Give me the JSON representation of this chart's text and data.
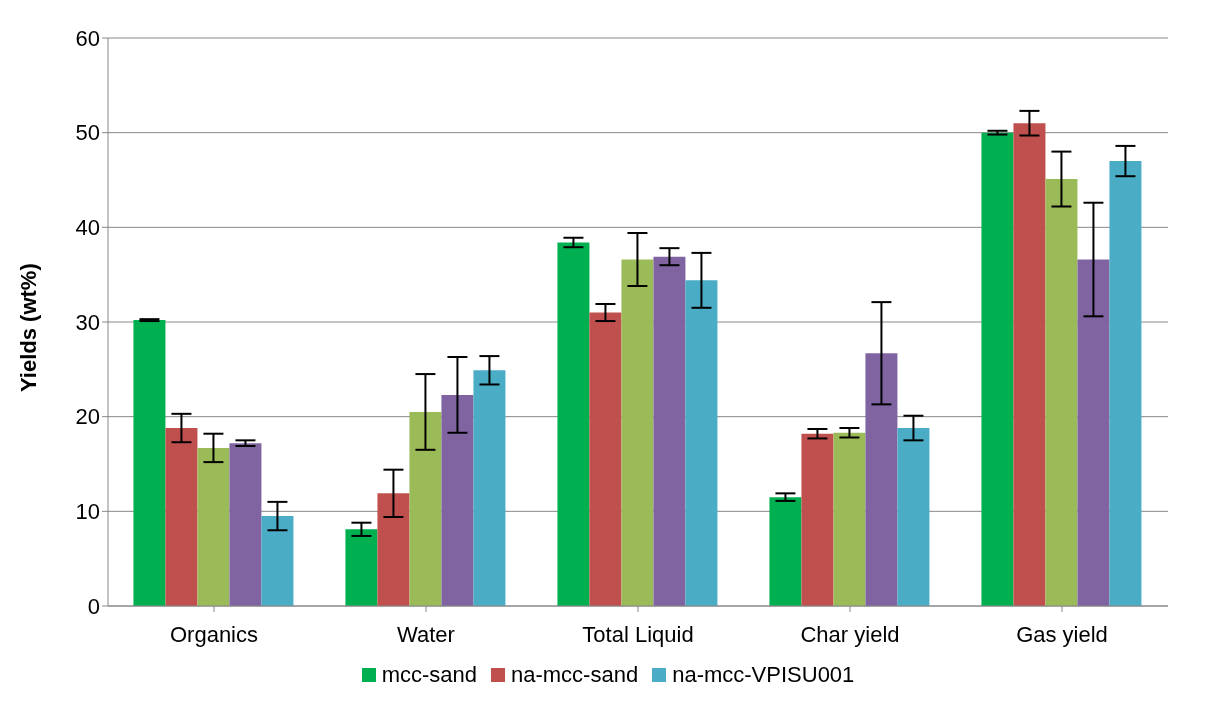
{
  "chart_data": {
    "type": "bar",
    "ylabel": "Yields (wt%)",
    "categories": [
      "Organics",
      "Water",
      "Total Liquid",
      "Char yield",
      "Gas yield"
    ],
    "series": [
      {
        "name": "mcc-sand",
        "color": "#00b050",
        "values": [
          30.2,
          8.1,
          38.4,
          11.5,
          50.0
        ],
        "errors": [
          0.1,
          0.7,
          0.5,
          0.4,
          0.2
        ]
      },
      {
        "name": "na-mcc-sand",
        "color": "#c0504d",
        "values": [
          18.8,
          11.9,
          31.0,
          18.2,
          51.0
        ],
        "errors": [
          1.5,
          2.5,
          0.9,
          0.5,
          1.3
        ]
      },
      {
        "color": "#9bbb59",
        "values": [
          16.7,
          20.5,
          36.6,
          18.3,
          45.1
        ],
        "errors": [
          1.5,
          4.0,
          2.8,
          0.5,
          2.9
        ]
      },
      {
        "color": "#8064a2",
        "values": [
          17.2,
          22.3,
          36.9,
          26.7,
          36.6
        ],
        "errors": [
          0.3,
          4.0,
          0.9,
          5.4,
          6.0
        ]
      },
      {
        "name": "na-mcc-VPISU001",
        "color": "#4bacc6",
        "values": [
          9.5,
          24.9,
          34.4,
          18.8,
          47.0
        ],
        "errors": [
          1.5,
          1.5,
          2.9,
          1.3,
          1.6
        ]
      }
    ],
    "ylim": [
      0,
      60
    ],
    "yticks": [
      0,
      10,
      20,
      30,
      40,
      50,
      60
    ],
    "grid": "y",
    "legend": "bottom"
  }
}
